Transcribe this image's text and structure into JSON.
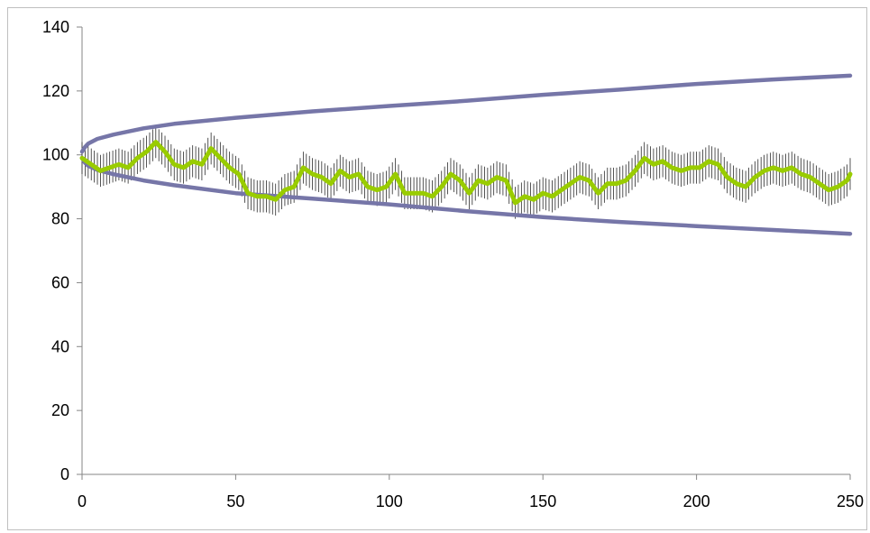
{
  "chart_data": {
    "type": "line",
    "title": "",
    "xlabel": "",
    "ylabel": "",
    "xlim": [
      0,
      250
    ],
    "ylim": [
      0,
      140
    ],
    "x_ticks": [
      0,
      50,
      100,
      150,
      200,
      250
    ],
    "y_ticks": [
      0,
      20,
      40,
      60,
      80,
      100,
      120,
      140
    ],
    "x_tick_labels": [
      "0",
      "50",
      "100",
      "150",
      "200",
      "250"
    ],
    "y_tick_labels": [
      "0",
      "20",
      "40",
      "60",
      "80",
      "100",
      "120",
      "140"
    ],
    "grid": false,
    "legend": "none",
    "error_bar_halfwidth": 5,
    "series": [
      {
        "role": "upper-envelope",
        "color": "#7676a8",
        "x": [
          0,
          1,
          2,
          5,
          10,
          20,
          30,
          50,
          75,
          100,
          125,
          150,
          175,
          200,
          225,
          250
        ],
        "y": [
          101,
          102.5,
          103.5,
          105,
          106.3,
          108.3,
          109.7,
          111.6,
          113.6,
          115.3,
          116.9,
          118.8,
          120.4,
          122.2,
          123.6,
          124.8
        ]
      },
      {
        "role": "lower-envelope",
        "color": "#7676a8",
        "x": [
          0,
          1,
          2,
          5,
          10,
          20,
          30,
          50,
          75,
          100,
          125,
          150,
          175,
          200,
          225,
          250
        ],
        "y": [
          99,
          97.5,
          96.6,
          95.3,
          94,
          92,
          90.5,
          88,
          86.3,
          84.5,
          82.4,
          80.5,
          79,
          77.7,
          76.5,
          75.3
        ]
      },
      {
        "role": "measured",
        "color": "#99cc00",
        "x": [
          0,
          3,
          6,
          9,
          12,
          15,
          18,
          21,
          24,
          27,
          30,
          33,
          36,
          39,
          42,
          45,
          48,
          51,
          54,
          57,
          60,
          63,
          66,
          69,
          72,
          75,
          78,
          81,
          84,
          87,
          90,
          93,
          96,
          99,
          102,
          105,
          108,
          111,
          114,
          117,
          120,
          123,
          126,
          129,
          132,
          135,
          138,
          141,
          144,
          147,
          150,
          153,
          156,
          159,
          162,
          165,
          168,
          171,
          174,
          177,
          180,
          183,
          186,
          189,
          192,
          195,
          198,
          201,
          204,
          207,
          210,
          213,
          216,
          219,
          222,
          225,
          228,
          231,
          234,
          237,
          240,
          243,
          246,
          249,
          250
        ],
        "y": [
          99,
          97,
          95,
          96,
          97,
          96,
          99,
          101,
          104,
          101,
          97,
          96,
          98,
          97,
          102,
          99,
          96,
          94,
          88,
          87,
          87,
          86,
          89,
          90,
          96,
          94,
          93,
          91,
          95,
          93,
          94,
          90,
          89,
          90,
          94,
          88,
          88,
          88,
          87,
          90,
          94,
          92,
          88,
          92,
          91,
          93,
          92,
          85,
          87,
          86,
          88,
          87,
          89,
          91,
          93,
          92,
          88,
          91,
          91,
          92,
          95,
          99,
          97,
          98,
          96,
          95,
          96,
          96,
          98,
          97,
          93,
          91,
          90,
          93,
          95,
          96,
          95,
          96,
          94,
          93,
          91,
          89,
          90,
          92,
          94
        ]
      }
    ]
  }
}
